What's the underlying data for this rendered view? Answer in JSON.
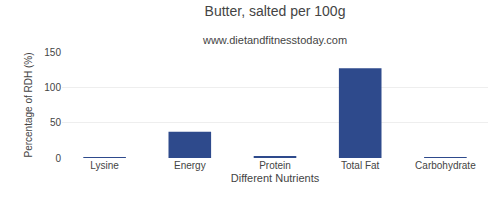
{
  "chart_data": {
    "type": "bar",
    "title": "Butter, salted per 100g",
    "subtitle": "www.dietandfitnesstoday.com",
    "xlabel": "Different Nutrients",
    "ylabel": "Percentage of RDH (%)",
    "categories": [
      "Lysine",
      "Energy",
      "Protein",
      "Total Fat",
      "Carbohydrate"
    ],
    "values": [
      0.3,
      37,
      3,
      127,
      0.3
    ],
    "color": "#2e4a8c",
    "ylim": [
      0,
      150
    ],
    "yticks": [
      0,
      50,
      100,
      150
    ],
    "grid": true
  }
}
